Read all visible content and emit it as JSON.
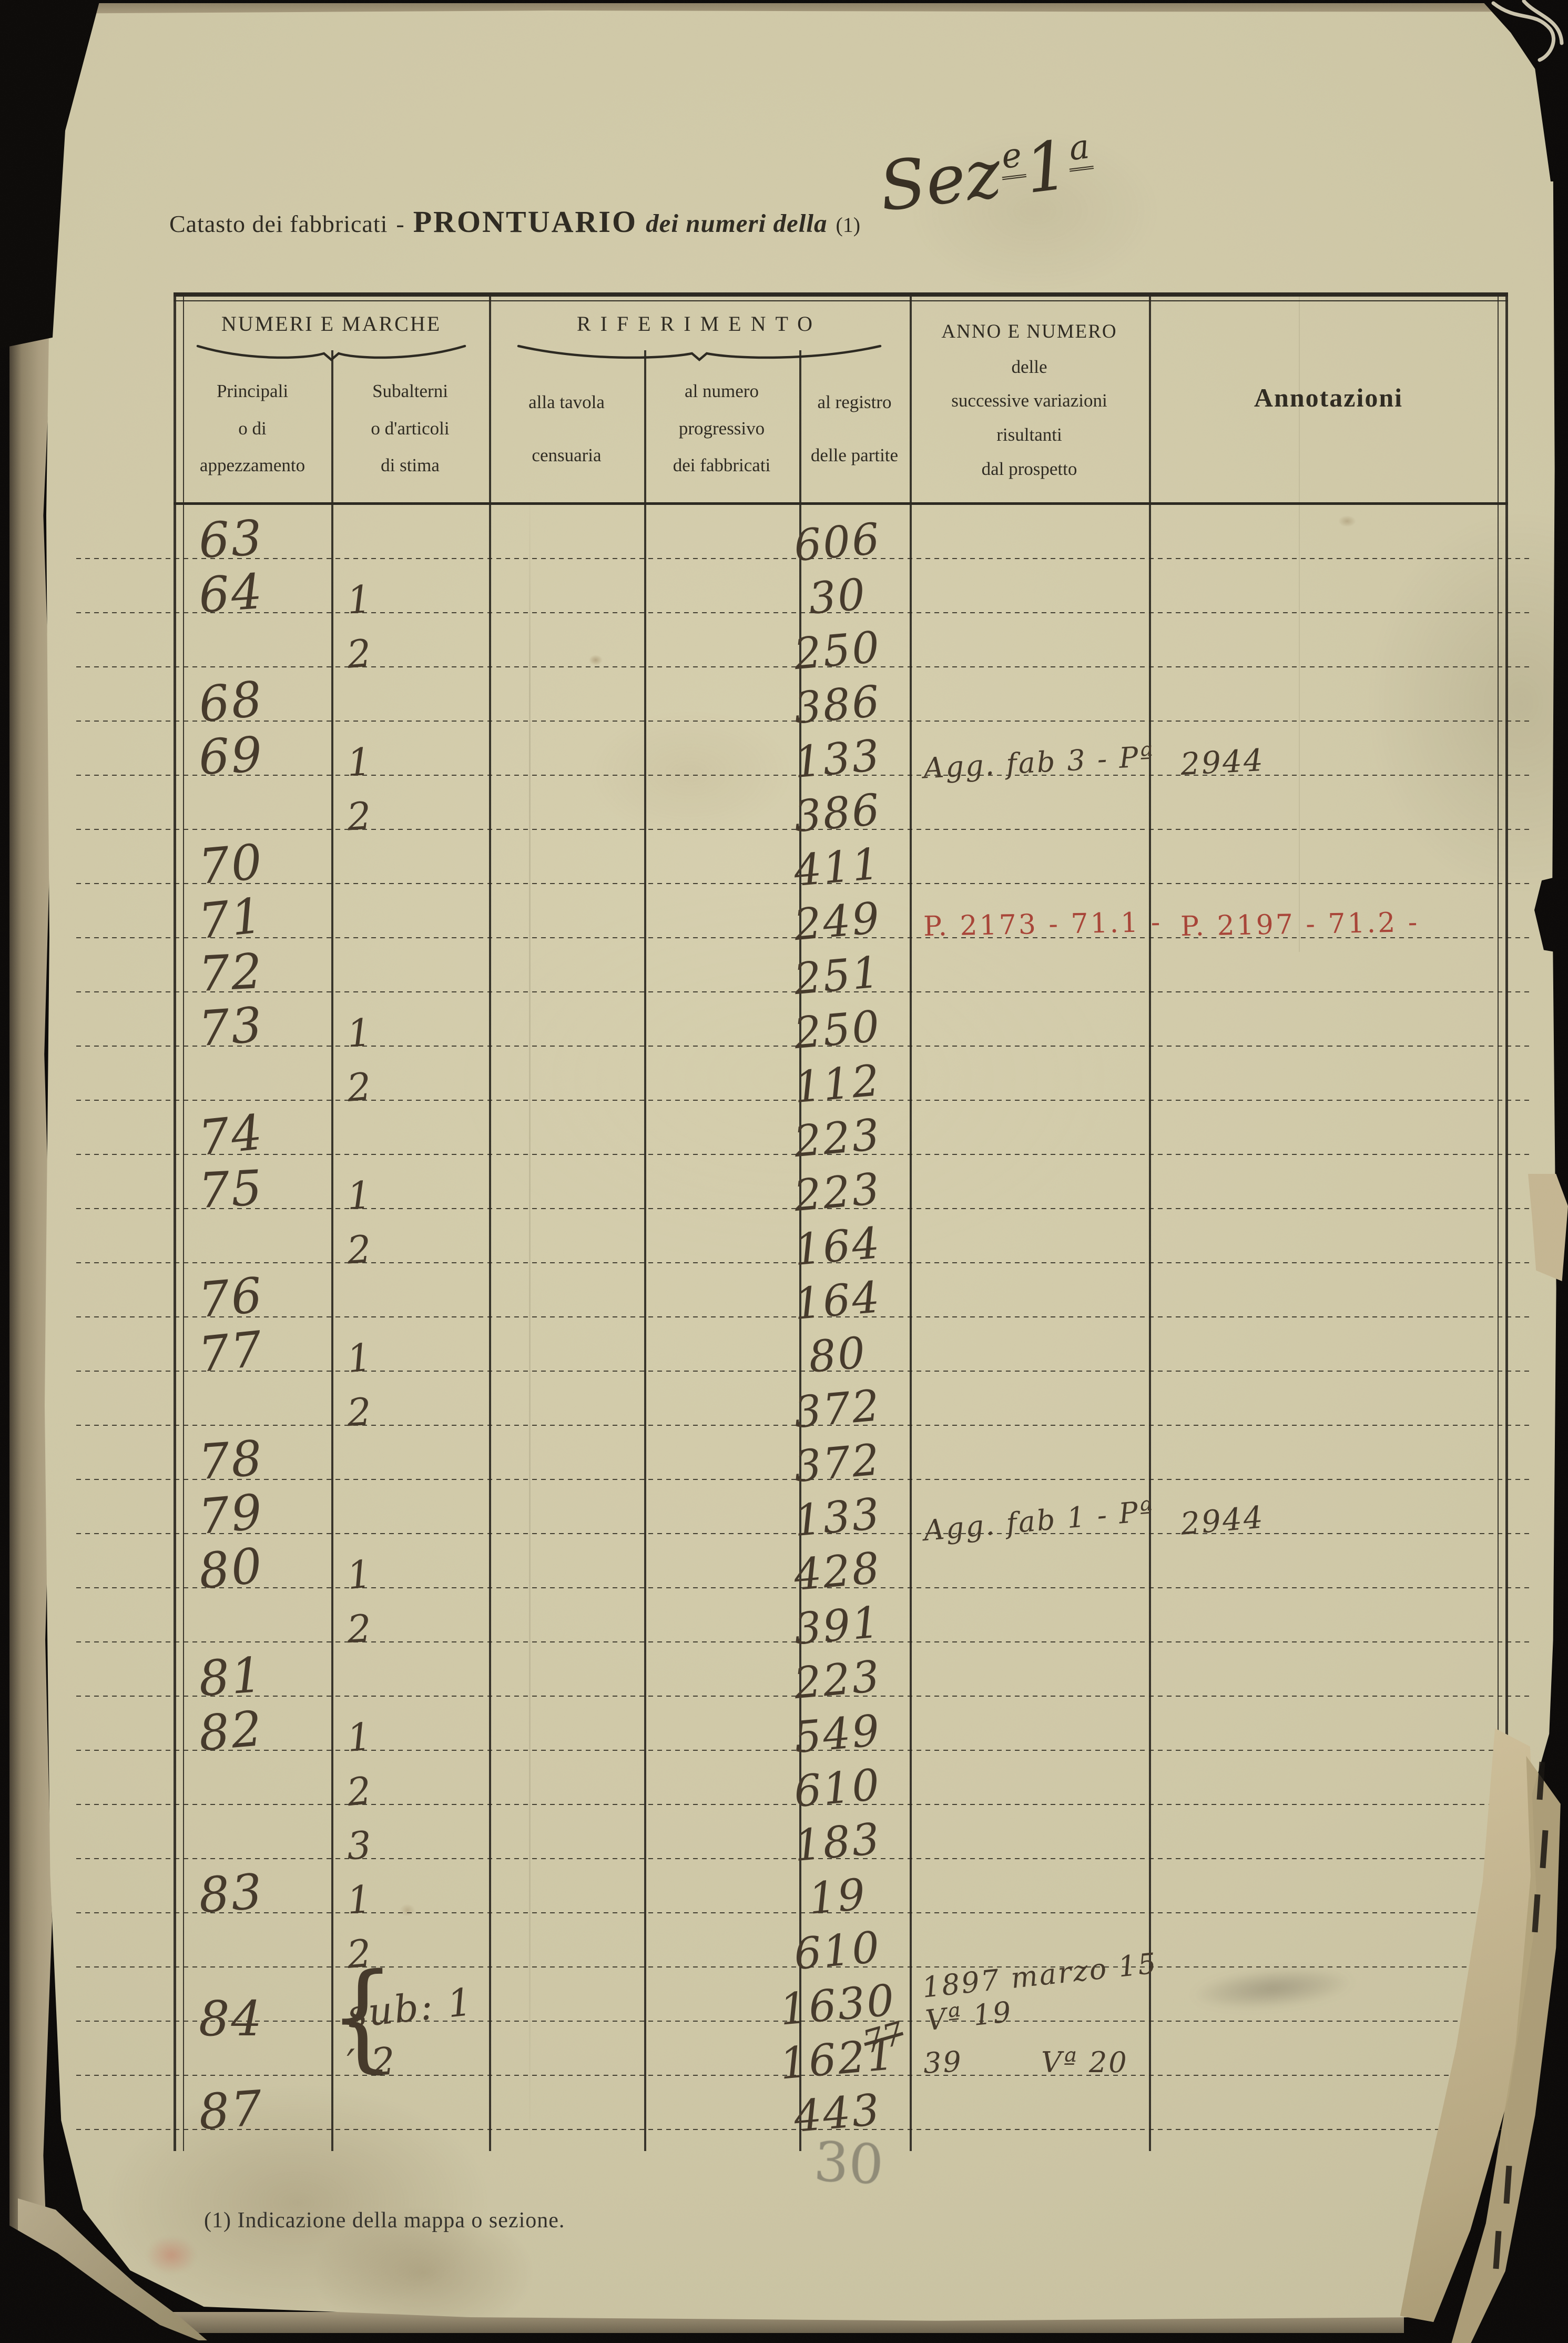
{
  "colors": {
    "paper": "#cdc6a5",
    "ink_print": "#2e2a21",
    "ink_hand": "#45392a",
    "ink_red": "#a84437",
    "pencil": "#6f6b5c",
    "line": "#2b2820"
  },
  "page": {
    "title": {
      "part1": "Catasto dei fabbricati",
      "dash": "-",
      "part2": "PRONTUARIO",
      "part3": "dei numeri della",
      "ref": "(1)"
    },
    "handwritten_section": {
      "base": "Sez",
      "sup1": "e",
      "num": "1",
      "sup2": "a"
    },
    "footnote": "(1) Indicazione della mappa o sezione.",
    "pencil_mark": "30"
  },
  "table": {
    "group_headers": [
      {
        "label": "NUMERI E MARCHE"
      },
      {
        "label": "RIFERIMENTO"
      }
    ],
    "columns": [
      {
        "lines": [
          "Principali",
          "o di",
          "appezzamento"
        ]
      },
      {
        "lines": [
          "Subalterni",
          "o d'articoli",
          "di stima"
        ]
      },
      {
        "lines": [
          "alla tavola",
          "censuaria"
        ]
      },
      {
        "lines": [
          "al numero",
          "progressivo",
          "dei fabbricati"
        ]
      },
      {
        "lines": [
          "al registro",
          "delle partite"
        ]
      },
      {
        "lines": [
          "ANNO E NUMERO",
          "delle",
          "successive variazioni",
          "risultanti",
          "dal prospetto"
        ]
      },
      {
        "lines": [
          "Annotazioni"
        ]
      }
    ],
    "brace_glyph": "{",
    "rows": [
      {
        "p": "63",
        "r": "606"
      },
      {
        "p": "64",
        "s": "1",
        "r": "30"
      },
      {
        "s": "2",
        "r": "250"
      },
      {
        "p": "68",
        "r": "386"
      },
      {
        "p": "69",
        "s": "1",
        "r": "133",
        "a": "Agg. fab 3 - Pª",
        "n": "2944"
      },
      {
        "s": "2",
        "r": "386"
      },
      {
        "p": "70",
        "r": "411"
      },
      {
        "p": "71",
        "r": "249",
        "a": "P. 2173 - 71.1 -",
        "n": "P. 2197 - 71.2 -",
        "red": true
      },
      {
        "p": "72",
        "r": "251"
      },
      {
        "p": "73",
        "s": "1",
        "r": "250"
      },
      {
        "s": "2",
        "r": "112"
      },
      {
        "p": "74",
        "r": "223"
      },
      {
        "p": "75",
        "s": "1",
        "r": "223"
      },
      {
        "s": "2",
        "r": "164"
      },
      {
        "p": "76",
        "r": "164"
      },
      {
        "p": "77",
        "s": "1",
        "r": "80"
      },
      {
        "s": "2",
        "r": "372"
      },
      {
        "p": "78",
        "r": "372"
      },
      {
        "p": "79",
        "r": "133",
        "a": "Agg. fab 1 - Pª",
        "n": "2944"
      },
      {
        "p": "80",
        "s": "1",
        "r": "428"
      },
      {
        "s": "2",
        "r": "391"
      },
      {
        "p": "81",
        "r": "223"
      },
      {
        "p": "82",
        "s": "1",
        "r": "549"
      },
      {
        "s": "2",
        "r": "610"
      },
      {
        "s": "3",
        "r": "183"
      },
      {
        "p": "83",
        "s": "1",
        "r": "19"
      },
      {
        "s": "2",
        "r": "610"
      },
      {
        "p": "84",
        "span2": true,
        "s": "sub: 1",
        "r": "1630",
        "r_struck": "77",
        "a": "1897 marzo 15 Vª 19",
        "smudge": true
      },
      {
        "s": "′ 2",
        "r": "1621",
        "a_left": "39",
        "a_right": "Vª 20"
      },
      {
        "p": "87",
        "r": "443"
      }
    ]
  }
}
